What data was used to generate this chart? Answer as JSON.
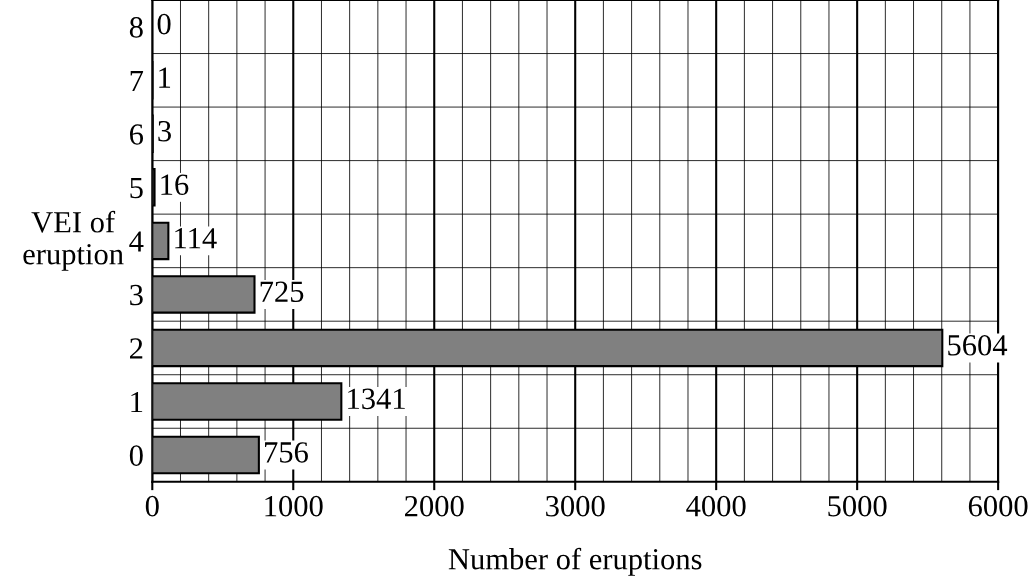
{
  "chart_data": {
    "type": "bar",
    "orientation": "horizontal",
    "xlabel": "Number of eruptions",
    "ylabel": "VEI of\neruption",
    "categories": [
      "8",
      "7",
      "6",
      "5",
      "4",
      "3",
      "2",
      "1",
      "0"
    ],
    "values": [
      0,
      1,
      3,
      16,
      114,
      725,
      5604,
      1341,
      756
    ],
    "color": "#808080",
    "data_labels": true,
    "xlim": [
      0,
      6000
    ],
    "xticks": [
      0,
      1000,
      2000,
      3000,
      4000,
      5000,
      6000
    ],
    "grid": true
  }
}
